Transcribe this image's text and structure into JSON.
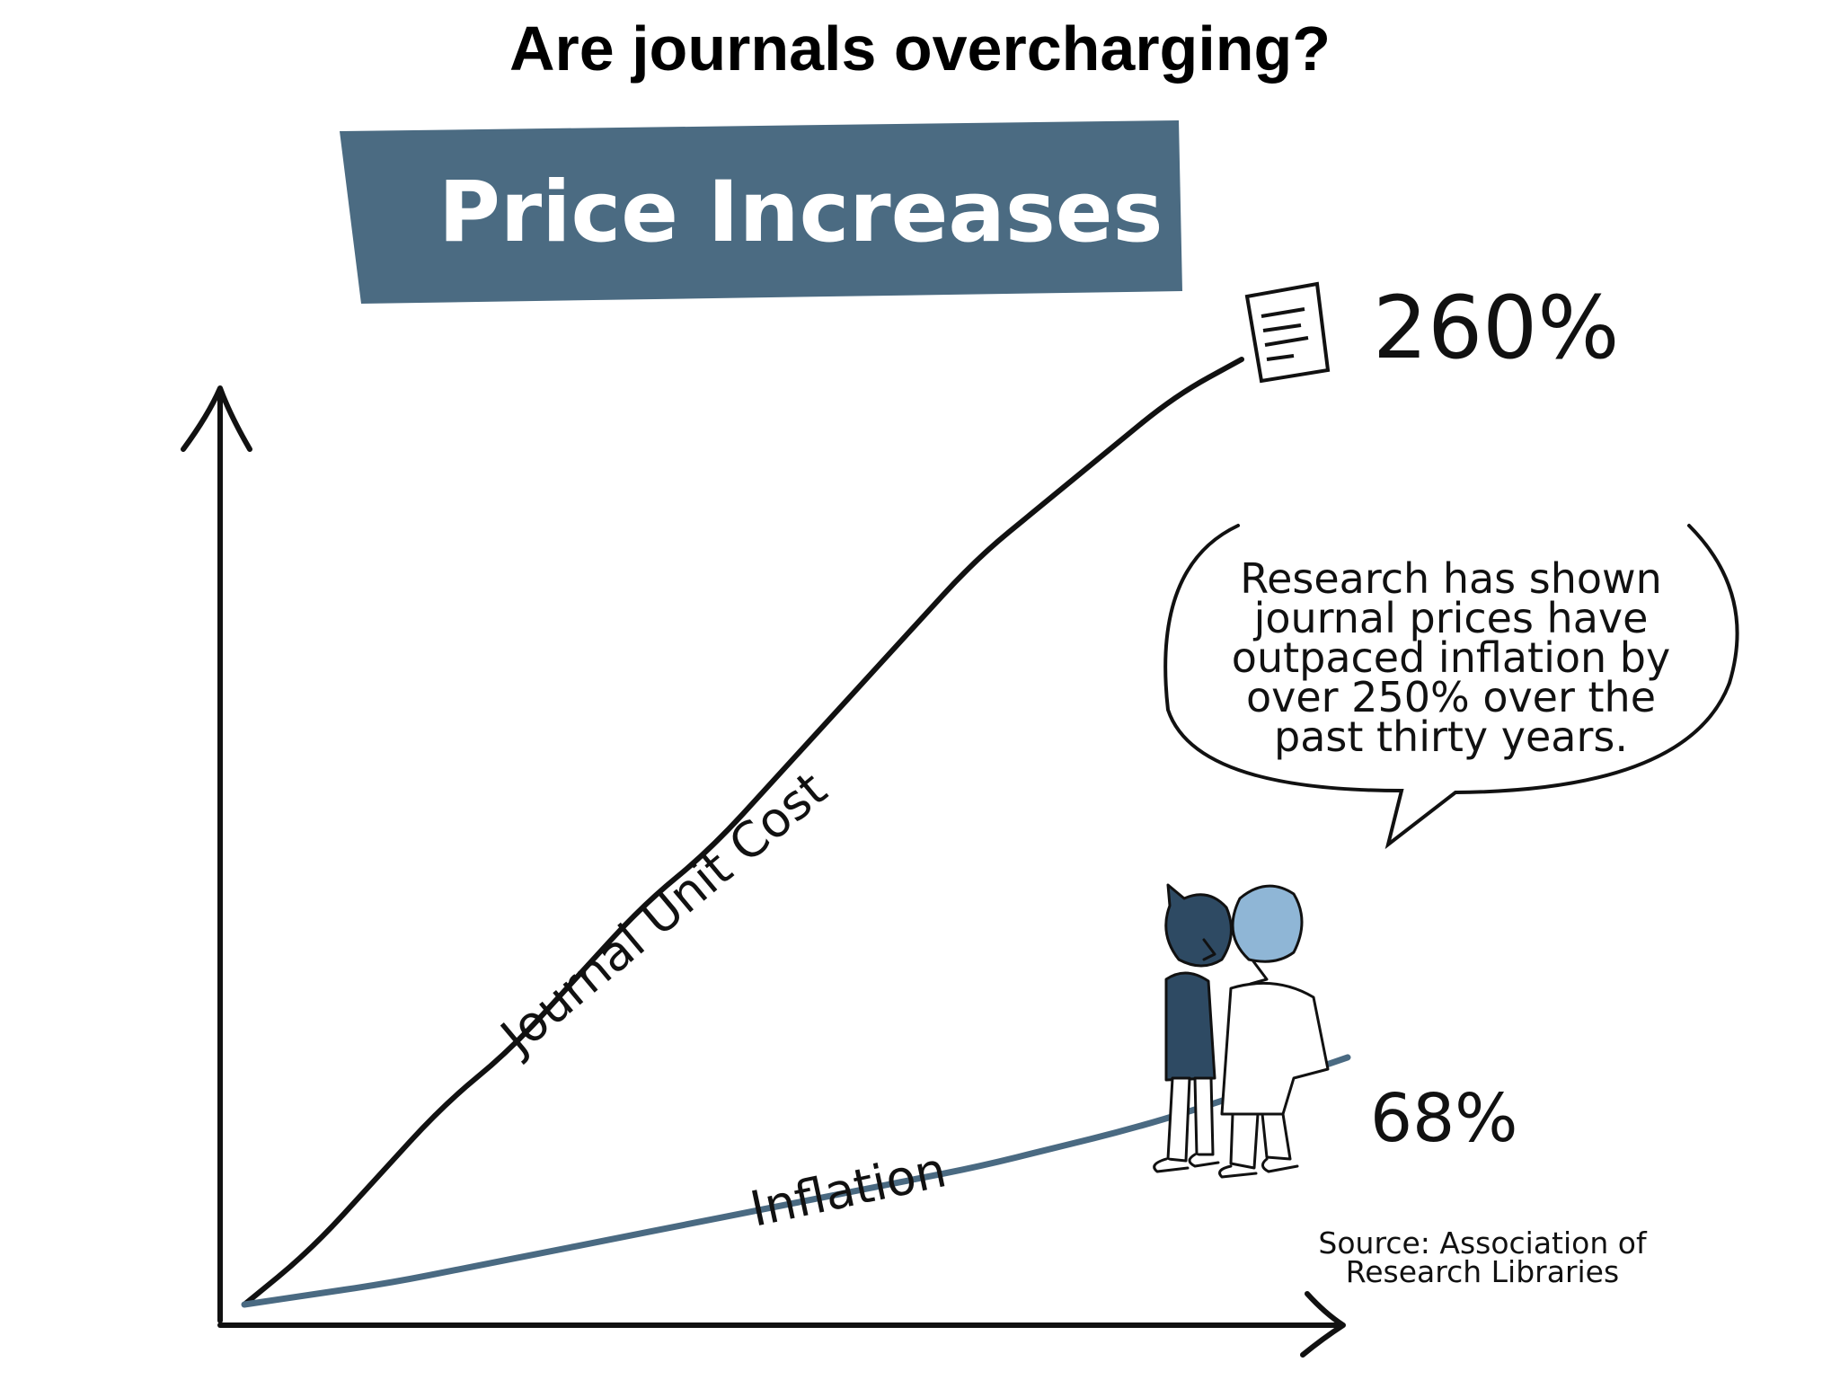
{
  "slide": {
    "title": "Are journals overcharging?"
  },
  "chart_data": {
    "type": "line",
    "title": "Price Increases",
    "xlabel": "",
    "ylabel": "",
    "grid": false,
    "series": [
      {
        "name": "Journal Unit Cost",
        "color": "#111111",
        "end_label": "260%",
        "values": [
          0,
          15,
          35,
          55,
          70,
          90,
          110,
          125,
          145,
          165,
          185,
          205,
          220,
          235,
          250,
          260
        ]
      },
      {
        "name": "Inflation",
        "color": "#4a6a82",
        "end_label": "68%",
        "values": [
          0,
          3,
          6,
          10,
          14,
          18,
          22,
          26,
          30,
          34,
          38,
          43,
          48,
          54,
          61,
          68
        ]
      }
    ],
    "ylim": [
      0,
      300
    ],
    "annotations": {
      "callout": [
        "Research has shown",
        "journal prices have",
        "outpaced inflation by",
        "over 250% over the",
        "past thirty years."
      ],
      "source": [
        "Source: Association of",
        "Research Libraries"
      ]
    },
    "colors": {
      "banner": "#4b6b82",
      "figure_dark": "#2e4a63",
      "figure_light": "#8fb6d6"
    }
  }
}
